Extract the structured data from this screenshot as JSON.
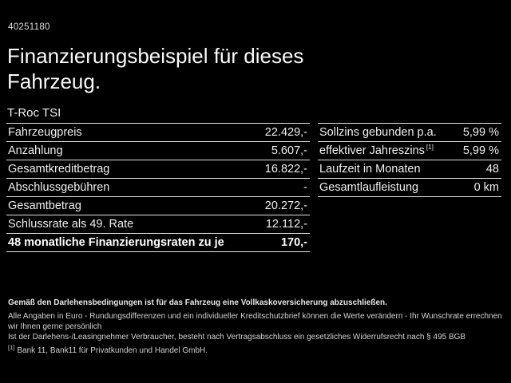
{
  "header": {
    "ref_number": "40251180",
    "title_line1": "Finanzierungsbeispiel für dieses",
    "title_line2": "Fahrzeug."
  },
  "model": "T-Roc TSI",
  "finance_table": {
    "rows": [
      {
        "label": "Fahrzeugpreis",
        "value": "22.429,-"
      },
      {
        "label": "Anzahlung",
        "value": "5.607,-"
      },
      {
        "label": "Gesamtkreditbetrag",
        "value": "16.822,-"
      },
      {
        "label": "Abschlussgebühren",
        "value": "-"
      },
      {
        "label": "Gesamtbetrag",
        "value": "20.272,-"
      },
      {
        "label": "Schlussrate als 49. Rate",
        "value": "12.112,-"
      },
      {
        "label": "48 monatliche Finanzierungsraten zu je",
        "value": "170,-"
      }
    ]
  },
  "conditions_table": {
    "rows": [
      {
        "label": "Sollzins gebunden p.a.",
        "sup": "",
        "value": "5,99 %"
      },
      {
        "label": "effektiver Jahreszins",
        "sup": "[1]",
        "value": "5,99 %"
      },
      {
        "label": "Laufzeit in Monaten",
        "sup": "",
        "value": "48"
      },
      {
        "label": "Gesamtlaufleistung",
        "sup": "",
        "value": "0 km"
      }
    ]
  },
  "footer": {
    "line1": "Gemäß den Darlehensbedingungen ist für das Fahrzeug eine Vollkaskoversicherung abzuschließen.",
    "line2": "Alle Angaben in Euro - Rundungsdifferenzen und ein individueller Kreditschutzbrief können die Werte verändern - Ihr Wunschrate errechnen wir Ihnen gerne persönlich",
    "line3": "Ist der Darlehens-/Leasingnehmer Verbraucher, besteht nach Vertragsabschluss ein gesetzliches Widerrufsrecht nach § 495 BGB",
    "footnote_marker": "[1]",
    "footnote_text": "Bank 11, Bank11 für Privatkunden und Handel GmbH."
  },
  "colors": {
    "background": "#000000",
    "text": "#f2f2f2",
    "divider": "#e3e3e3"
  }
}
